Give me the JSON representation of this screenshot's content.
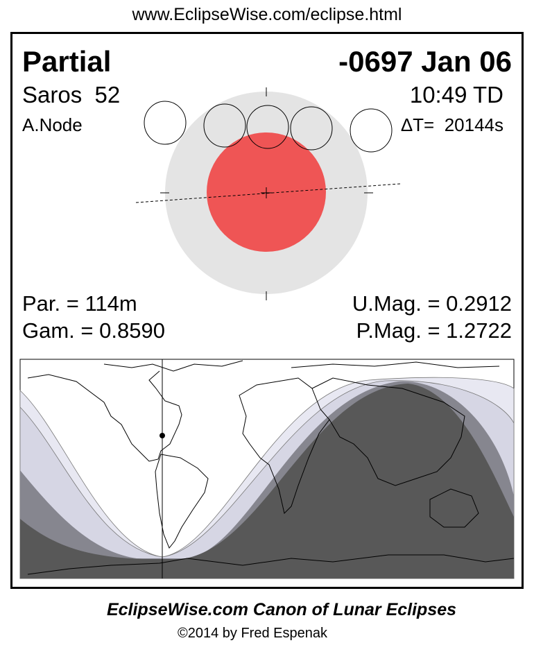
{
  "header": {
    "url": "www.EclipseWise.com/eclipse.html"
  },
  "eclipse": {
    "type": "Partial",
    "date": "-0697 Jan 06",
    "saros": "Saros  52",
    "time": "10:49 TD",
    "node": "A.Node",
    "delta_t": "ΔT=  20144s",
    "duration": "Par. = 114m",
    "gamma": "Gam. = 0.8590",
    "umbral_magnitude": "U.Mag. = 0.2912",
    "penumbral_magnitude": "P.Mag. = 1.2722"
  },
  "colors": {
    "penumbra": "#e4e4e4",
    "umbra": "#ef5555",
    "map_zone_1": "#e8e8f2",
    "map_zone_2": "#d6d6e4",
    "map_zone_3": "#86868f",
    "map_zone_4": "#585858"
  },
  "footer": {
    "title": "EclipseWise.com Canon of Lunar Eclipses",
    "copyright": "©2014 by Fred Espenak"
  }
}
